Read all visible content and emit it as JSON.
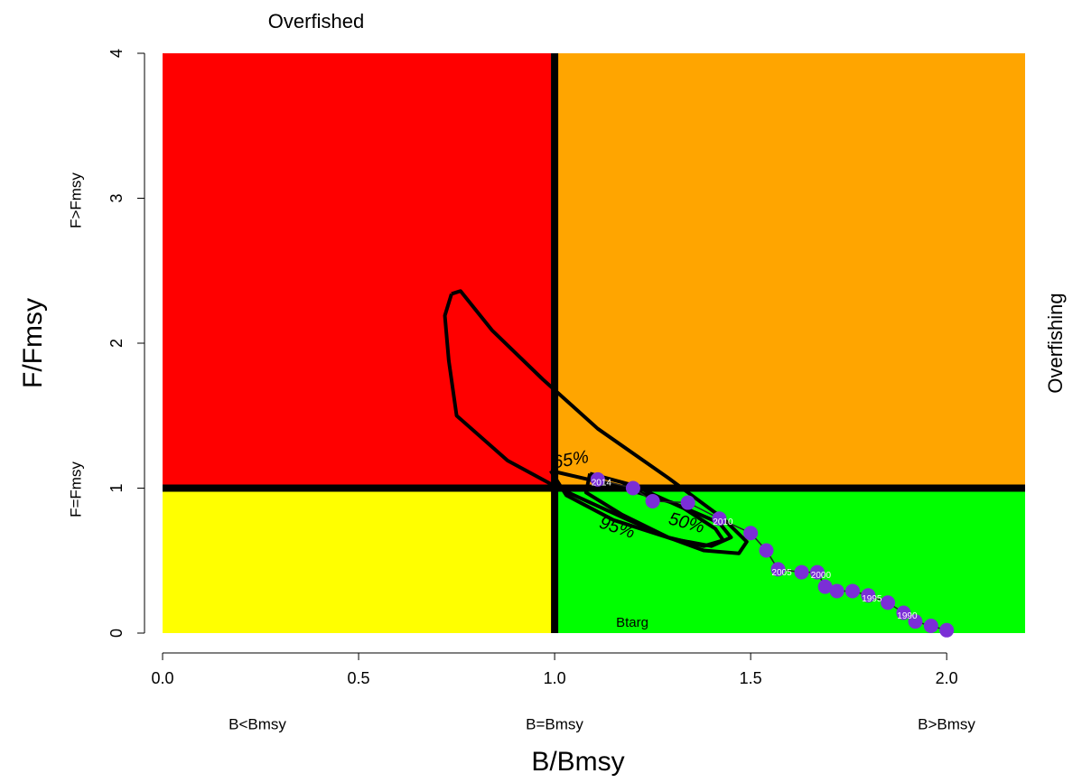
{
  "chart_data": {
    "type": "kobe",
    "title": "Overfished",
    "right_label": "Overfishing",
    "x_label": "B/Bmsy",
    "y_label": "F/Fmsy",
    "x_zone_labels": [
      "B<Bmsy",
      "B=Bmsy",
      "B>Bmsy"
    ],
    "y_zone_labels": [
      "F>Fmsy",
      "F=Fmsy"
    ],
    "target_label": "Btarg",
    "xlim": [
      0,
      2.2
    ],
    "ylim": [
      0,
      4
    ],
    "xticks": [
      {
        "value": 0,
        "label": "0.0"
      },
      0.5,
      {
        "value": 1,
        "label": "1.0"
      },
      1.5,
      {
        "value": 2,
        "label": "2.0"
      }
    ],
    "yticks": [
      0,
      1,
      2,
      3,
      4
    ],
    "ref_lines": {
      "x": 1,
      "y": 1
    },
    "quadrant_colors": {
      "top_left": "#ff0000",
      "top_right": "#ffa500",
      "bottom_left": "#ffff00",
      "bottom_right": "#00ff00"
    },
    "point_color": "#7b2fd6",
    "series": [
      {
        "x": [
          1.11,
          1.2,
          1.25,
          1.34,
          1.42,
          1.5,
          1.54,
          1.57,
          1.63,
          1.67,
          1.69,
          1.72,
          1.76,
          1.8,
          1.85,
          1.89,
          1.92,
          1.96,
          2.0
        ],
        "values": [
          1.06,
          1.0,
          0.91,
          0.9,
          0.79,
          0.69,
          0.57,
          0.44,
          0.42,
          0.42,
          0.32,
          0.29,
          0.29,
          0.26,
          0.21,
          0.14,
          0.08,
          0.05,
          0.02
        ],
        "labels": [
          "2014",
          null,
          null,
          null,
          "2010",
          null,
          null,
          "2005",
          null,
          "2000",
          null,
          null,
          null,
          "1995",
          null,
          "1990",
          null,
          null,
          null
        ]
      }
    ],
    "contours": [
      {
        "label": "95%",
        "x": [
          0.737,
          0.76,
          0.84,
          0.97,
          1.11,
          1.29,
          1.43,
          1.49,
          1.47,
          1.38,
          1.29,
          1.18,
          1.01,
          0.88,
          0.75,
          0.73,
          0.72,
          0.737
        ],
        "y": [
          2.34,
          2.36,
          2.09,
          1.75,
          1.41,
          1.07,
          0.79,
          0.63,
          0.55,
          0.57,
          0.66,
          0.79,
          1.0,
          1.19,
          1.5,
          1.88,
          2.19,
          2.34
        ]
      },
      {
        "label": "65%",
        "x": [
          0.99,
          1.15,
          1.3,
          1.42,
          1.45,
          1.4,
          1.3,
          1.15,
          1.03,
          0.99
        ],
        "y": [
          1.12,
          1.02,
          0.9,
          0.76,
          0.66,
          0.6,
          0.65,
          0.78,
          0.95,
          1.12
        ]
      },
      {
        "label": "50%",
        "x": [
          1.09,
          1.2,
          1.33,
          1.41,
          1.43,
          1.38,
          1.29,
          1.17,
          1.08,
          1.09
        ],
        "y": [
          1.1,
          1.02,
          0.86,
          0.72,
          0.64,
          0.6,
          0.66,
          0.82,
          0.97,
          1.1
        ]
      }
    ]
  }
}
